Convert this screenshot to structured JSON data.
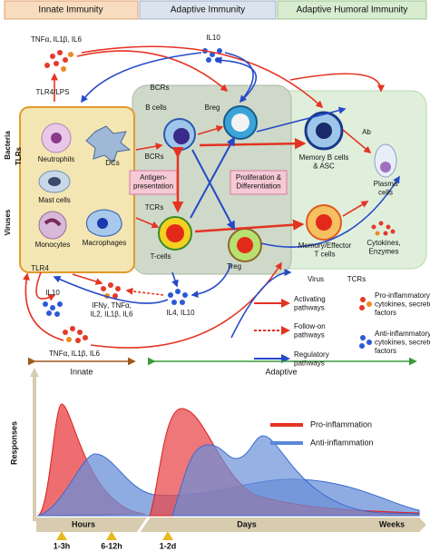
{
  "header": {
    "innate": "Innate Immunity",
    "adaptive": "Adaptive Immunity",
    "humoral": "Adaptive Humoral Immunity"
  },
  "diagram": {
    "tnf_top": "TNFα, IL1β, IL6",
    "il10_top": "IL10",
    "tlr4_lps": "TLR4/LPS",
    "bacteria": "Bacteria",
    "tlrs": "TLRs",
    "viruses": "Viruses",
    "neutrophils": "Neutrophils",
    "dcs": "DCs",
    "mast": "Mast cells",
    "monocytes": "Monocytes",
    "macrophages": "Macrophages",
    "antigen": [
      "Antigen-",
      "presentation"
    ],
    "bcrs_top": "BCRs",
    "bcells": "B cells",
    "breg": "Breg",
    "bcrs": "BCRs",
    "tcrs": "TCRs",
    "tcells": "T-cells",
    "treg": "Treg",
    "prolif": [
      "Proliferation &",
      "Differentiation"
    ],
    "ab": "Ab",
    "memory_b": [
      "Memory B cells",
      "& ASC"
    ],
    "plasma": [
      "Plasma",
      "cells"
    ],
    "memory_t": [
      "Memory/Effector",
      "T cells"
    ],
    "cytokines": [
      "Cytokines,",
      "Enzymes"
    ],
    "virus": "Virus",
    "tcrs_right": "TCRs",
    "tlr4": "TLR4",
    "il10_bottom": "IL10",
    "ifn": [
      "IFNγ, TNFα,",
      "IL2, IL1β, IL6"
    ],
    "il4": "IL4, IL10",
    "tnf_bottom": "TNFα, IL1β, IL6"
  },
  "legend": {
    "activating": [
      "Activating",
      "pathways"
    ],
    "follow": [
      "Follow-on",
      "pathways"
    ],
    "regulatory": [
      "Regulatory",
      "pathways"
    ],
    "pro": [
      "Pro-inflammatory",
      "cytokines, secretory",
      "factors"
    ],
    "anti": [
      "Anti-inflammatory",
      "cytokines, secretory",
      "factors"
    ]
  },
  "timeline": {
    "innate": "Innate",
    "adaptive": "Adaptive",
    "responses": "Responses",
    "pro": "Pro-inflammation",
    "anti": "Anti-inflammation",
    "hours": "Hours",
    "days": "Days",
    "weeks": "Weeks",
    "t1": "1-3h",
    "t2": "6-12h",
    "t3": "1-2d"
  }
}
